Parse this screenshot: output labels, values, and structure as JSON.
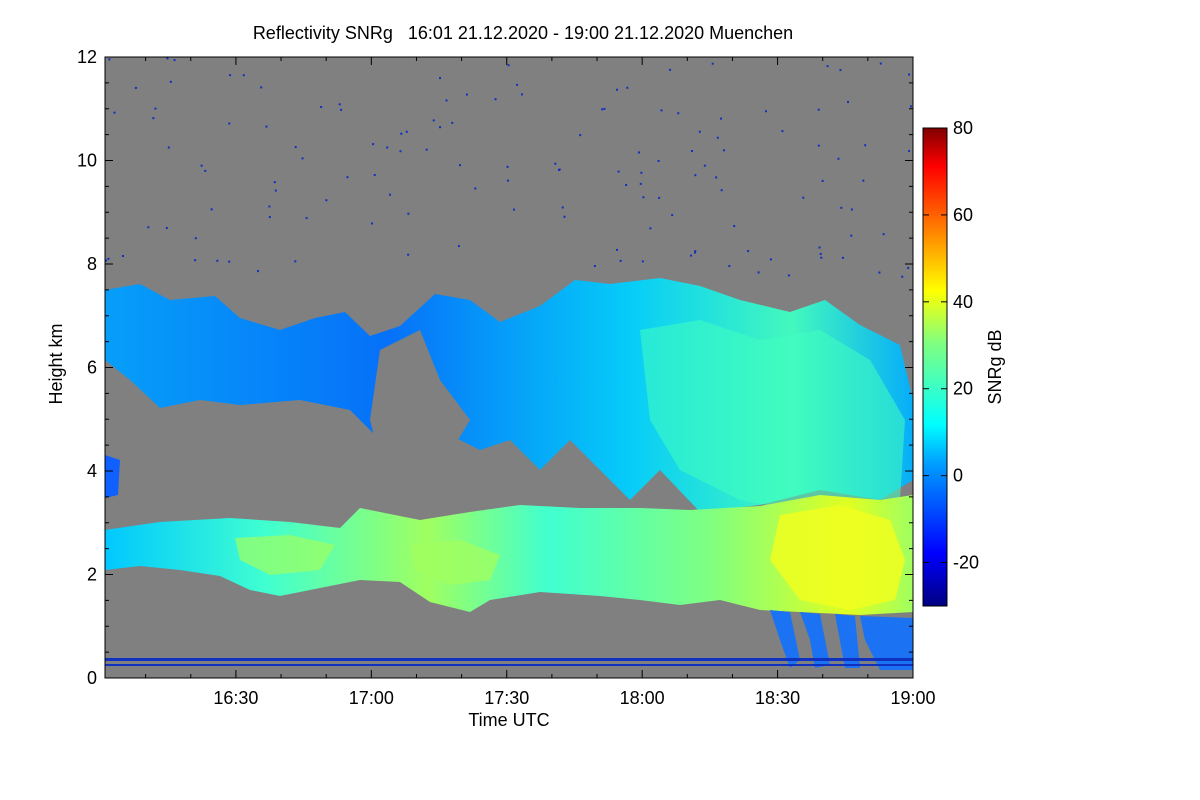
{
  "chart_data": {
    "type": "heatmap",
    "title": "Reflectivity SNRg   16:01 21.12.2020 - 19:00 21.12.2020 Muenchen",
    "xlabel": "Time UTC",
    "ylabel": "Height km",
    "xlim": [
      "16:01",
      "19:00"
    ],
    "ylim": [
      0,
      12
    ],
    "xticks": [
      "16:30",
      "17:00",
      "17:30",
      "18:00",
      "18:30",
      "19:00"
    ],
    "yticks": [
      "0",
      "2",
      "4",
      "6",
      "8",
      "10",
      "12"
    ],
    "colorbar": {
      "label": "SNRg dB",
      "range": [
        -30,
        80
      ],
      "ticks": [
        "-20",
        "0",
        "20",
        "40",
        "60",
        "80"
      ],
      "colormap": "jet"
    },
    "background_color": "#808080",
    "features": [
      {
        "name": "upper cloud layer",
        "time_range": [
          "16:01",
          "19:00"
        ],
        "height_range_km": [
          3.5,
          7.7
        ],
        "snr_range_db": [
          -20,
          30
        ]
      },
      {
        "name": "lower cloud layer",
        "time_range": [
          "16:01",
          "19:00"
        ],
        "height_range_km": [
          1.5,
          3.0
        ],
        "snr_range_db": [
          0,
          40
        ]
      },
      {
        "name": "precipitation fall streaks",
        "time_range": [
          "18:30",
          "19:00"
        ],
        "height_range_km": [
          0.0,
          1.2
        ],
        "snr_range_db": [
          -20,
          10
        ]
      },
      {
        "name": "ground clutter line",
        "time_range": [
          "16:01",
          "19:00"
        ],
        "height_range_km": [
          0.2,
          0.3
        ],
        "snr_range_db": [
          -25,
          -20
        ]
      }
    ]
  }
}
